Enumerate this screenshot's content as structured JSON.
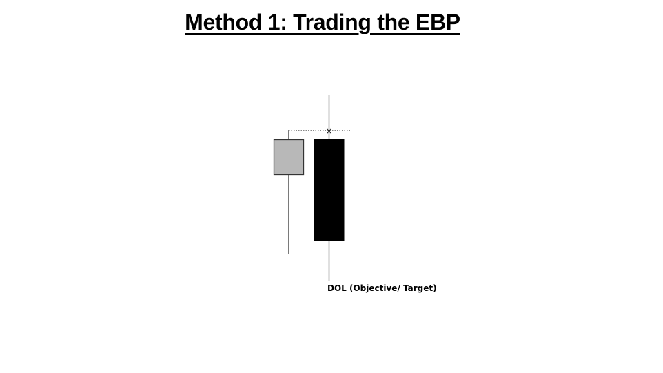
{
  "title": "Method 1: Trading the EBP",
  "target_label": "DOL (Objective/ Target)",
  "marker_label": "×",
  "colors": {
    "bullish_candle": "#b8b8b8",
    "bearish_candle": "#000000",
    "outline": "#333333",
    "reference_line": "#888888"
  }
}
